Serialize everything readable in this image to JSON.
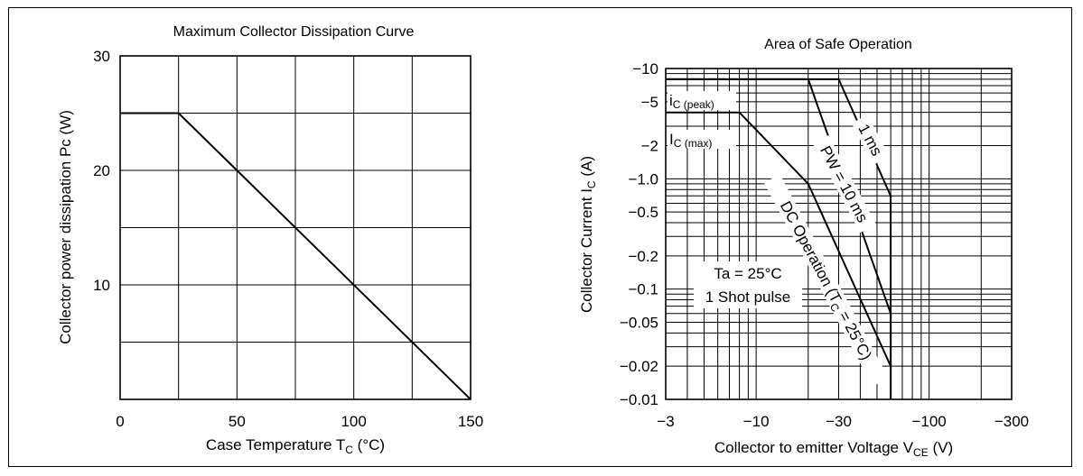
{
  "chart_data": [
    {
      "type": "line",
      "title": "Maximum Collector Dissipation Curve",
      "xlabel": {
        "main": "Case Temperature  T",
        "sub": "C",
        "unit": "  (°C)"
      },
      "ylabel": "Collector power dissipation  Pc  (W)",
      "xlim": [
        0,
        150
      ],
      "ylim": [
        0,
        30
      ],
      "x_ticks": [
        "0",
        "50",
        "100",
        "150"
      ],
      "x_tick_values": [
        0,
        50,
        100,
        150
      ],
      "y_ticks": [
        "10",
        "20",
        "30"
      ],
      "y_tick_values": [
        10,
        20,
        30
      ],
      "x_grid": [
        0,
        25,
        50,
        75,
        100,
        125,
        150
      ],
      "y_grid": [
        0,
        5,
        10,
        15,
        20,
        25,
        30
      ],
      "grid": true,
      "series": [
        {
          "x": [
            0,
            25,
            150
          ],
          "y": [
            25,
            25,
            0
          ]
        }
      ]
    },
    {
      "type": "line",
      "title": "Area of Safe Operation",
      "xlabel": {
        "main": "Collector to emitter Voltage  V",
        "sub": "CE",
        "unit": "  (V)"
      },
      "ylabel": {
        "main": "Collector Current  I",
        "sub": "C",
        "unit": "  (A)"
      },
      "x_scale": "log",
      "y_scale": "log",
      "x_sign": "negative",
      "y_sign": "negative",
      "xlim": [
        -3,
        -300
      ],
      "ylim": [
        -0.01,
        -10
      ],
      "x_ticks": [
        "−3",
        "−10",
        "−30",
        "−100",
        "−300"
      ],
      "x_tick_values": [
        3,
        10,
        30,
        100,
        300
      ],
      "y_ticks": [
        "−10",
        "−5",
        "−2",
        "−1.0",
        "−0.5",
        "−0.2",
        "−0.1",
        "−0.05",
        "−0.02",
        "−0.01"
      ],
      "y_tick_values": [
        10,
        5,
        2,
        1,
        0.5,
        0.2,
        0.1,
        0.05,
        0.02,
        0.01
      ],
      "grid": true,
      "annotations": {
        "ic_peak": {
          "main": "i",
          "sub": "C (peak)"
        },
        "ic_max": {
          "main": "I",
          "sub": "C (max)"
        },
        "conditions": [
          "Ta = 25°C",
          "1 Shot pulse"
        ],
        "label_1ms": "1 ms",
        "label_10ms": "PW = 10 ms",
        "label_dc": {
          "main": "DC Operation  (T",
          "sub": "C",
          "unit": " = 25°C)"
        }
      },
      "series": [
        {
          "name": "1 ms",
          "x": [
            -3,
            -30,
            -60,
            -60
          ],
          "y": [
            -8,
            -8,
            -0.7,
            -0.01
          ]
        },
        {
          "name": "PW = 10 ms",
          "x": [
            -3,
            -20,
            -60,
            -60
          ],
          "y": [
            -8,
            -8,
            -0.06,
            -0.01
          ]
        },
        {
          "name": "DC Operation",
          "x": [
            -3,
            -8,
            -20,
            -60
          ],
          "y": [
            -4,
            -4,
            -0.9,
            -0.02
          ]
        }
      ]
    }
  ]
}
